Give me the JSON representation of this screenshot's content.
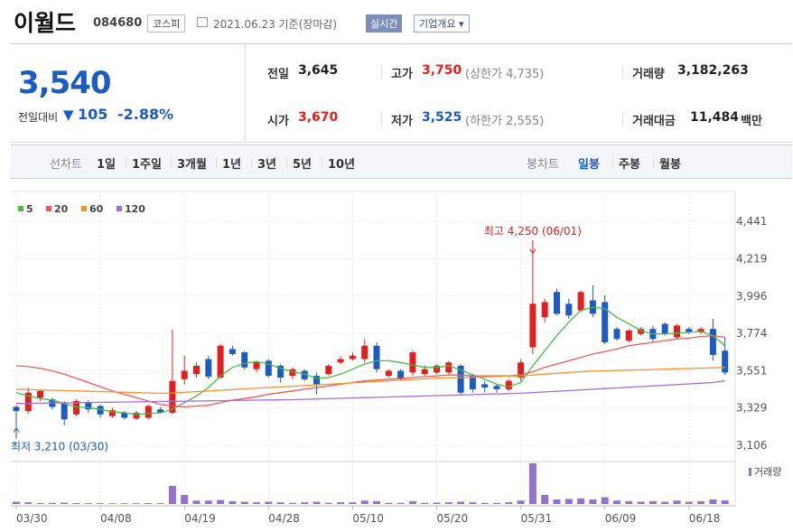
{
  "header": {
    "name": "이월드",
    "code": "084680",
    "market": "코스피",
    "date": "2021.06.23 기준(장마감)",
    "realtime": "실시간",
    "overview": "기업개요"
  },
  "quote": {
    "price": "3,540",
    "change_label": "전일대비",
    "change": "105",
    "change_pct": "-2.88%",
    "rows": [
      [
        {
          "label": "전일",
          "value": "3,645"
        },
        {
          "label": "고가",
          "value": "3,750",
          "note": "(상한가 4,735)"
        },
        {
          "label": "거래량",
          "value": "3,182,263"
        }
      ],
      [
        {
          "label": "시가",
          "value": "3,670"
        },
        {
          "label": "저가",
          "value": "3,525",
          "note": "(하한가 2,555)"
        },
        {
          "label": "거래대금",
          "value": "11,484",
          "unit": "백만"
        }
      ]
    ]
  },
  "tabs": {
    "line_label": "선차트",
    "line_items": [
      "1일",
      "1주일",
      "3개월",
      "1년",
      "3년",
      "5년",
      "10년"
    ],
    "candle_label": "봉차트",
    "candle_items": [
      "일봉",
      "주봉",
      "월봉"
    ]
  },
  "chart_data": {
    "type": "candlestick",
    "categories": [
      "03/30",
      null,
      null,
      null,
      null,
      null,
      null,
      "04/08",
      null,
      null,
      null,
      null,
      null,
      null,
      "04/19",
      null,
      null,
      null,
      null,
      null,
      null,
      "04/28",
      null,
      null,
      null,
      null,
      null,
      null,
      "05/10",
      null,
      null,
      null,
      null,
      null,
      null,
      "05/20",
      null,
      null,
      null,
      null,
      null,
      null,
      "05/31",
      null,
      null,
      null,
      null,
      null,
      null,
      "06/09",
      null,
      null,
      null,
      null,
      null,
      null,
      "06/18",
      null,
      null,
      null
    ],
    "open": [
      3335,
      3310,
      3390,
      3380,
      3355,
      3290,
      3360,
      3340,
      3280,
      3300,
      3265,
      3270,
      3320,
      3300,
      3500,
      3530,
      3620,
      3510,
      3680,
      3660,
      3560,
      3610,
      3580,
      3520,
      3550,
      3520,
      3530,
      3600,
      3620,
      3620,
      3700,
      3520,
      3550,
      3540,
      3530,
      3540,
      3540,
      3580,
      3520,
      3470,
      3460,
      3440,
      3510,
      3690,
      3870,
      4020,
      3950,
      3910,
      3970,
      3960,
      3800,
      3730,
      3770,
      3800,
      3830,
      3750,
      3800,
      3780,
      3800,
      3670
    ],
    "high": [
      3345,
      3450,
      3440,
      3390,
      3370,
      3380,
      3375,
      3350,
      3330,
      3310,
      3310,
      3350,
      3335,
      3795,
      3640,
      3600,
      3640,
      3710,
      3700,
      3670,
      3610,
      3620,
      3590,
      3570,
      3560,
      3540,
      3590,
      3640,
      3660,
      3740,
      3720,
      3560,
      3560,
      3670,
      3580,
      3590,
      3610,
      3590,
      3530,
      3490,
      3470,
      3500,
      3620,
      4250,
      3980,
      4040,
      3980,
      4030,
      4060,
      4000,
      3810,
      3800,
      3810,
      3820,
      3840,
      3830,
      3810,
      3810,
      3860,
      3750
    ],
    "low": [
      3210,
      3295,
      3370,
      3320,
      3225,
      3280,
      3300,
      3270,
      3270,
      3260,
      3255,
      3260,
      3295,
      3290,
      3470,
      3510,
      3500,
      3500,
      3640,
      3560,
      3540,
      3510,
      3480,
      3500,
      3490,
      3410,
      3520,
      3590,
      3610,
      3600,
      3540,
      3510,
      3490,
      3520,
      3520,
      3530,
      3530,
      3410,
      3420,
      3420,
      3420,
      3430,
      3490,
      3650,
      3840,
      3880,
      3860,
      3900,
      3870,
      3710,
      3730,
      3720,
      3760,
      3720,
      3760,
      3740,
      3770,
      3770,
      3610,
      3525
    ],
    "close": [
      3310,
      3420,
      3430,
      3335,
      3260,
      3370,
      3320,
      3290,
      3315,
      3270,
      3300,
      3340,
      3300,
      3490,
      3550,
      3580,
      3515,
      3700,
      3650,
      3570,
      3600,
      3520,
      3510,
      3560,
      3500,
      3470,
      3580,
      3620,
      3640,
      3700,
      3560,
      3550,
      3500,
      3660,
      3560,
      3580,
      3600,
      3420,
      3440,
      3450,
      3440,
      3490,
      3600,
      3950,
      3960,
      3890,
      3880,
      4020,
      3890,
      3720,
      3740,
      3790,
      3800,
      3740,
      3770,
      3820,
      3780,
      3800,
      3645,
      3540
    ],
    "up_color": "#e0201f",
    "down_color": "#1c5bbf",
    "series": [
      {
        "name": "5",
        "color": "#4cb848",
        "values": [
          3420,
          3400,
          3385,
          3375,
          3355,
          3335,
          3330,
          3320,
          3305,
          3300,
          3290,
          3295,
          3300,
          3320,
          3360,
          3400,
          3450,
          3520,
          3570,
          3595,
          3605,
          3590,
          3565,
          3545,
          3530,
          3505,
          3510,
          3530,
          3560,
          3590,
          3610,
          3610,
          3600,
          3585,
          3570,
          3570,
          3580,
          3555,
          3525,
          3500,
          3470,
          3455,
          3480,
          3580,
          3670,
          3760,
          3840,
          3910,
          3930,
          3920,
          3870,
          3830,
          3790,
          3770,
          3770,
          3775,
          3780,
          3785,
          3760,
          3700
        ]
      },
      {
        "name": "20",
        "color": "#ec5a5a",
        "values": [
          3580,
          3575,
          3565,
          3550,
          3530,
          3505,
          3480,
          3455,
          3430,
          3410,
          3390,
          3370,
          3350,
          3340,
          3335,
          3340,
          3345,
          3360,
          3375,
          3385,
          3395,
          3410,
          3420,
          3430,
          3440,
          3450,
          3460,
          3470,
          3480,
          3490,
          3495,
          3500,
          3505,
          3510,
          3515,
          3520,
          3525,
          3525,
          3520,
          3520,
          3520,
          3520,
          3525,
          3545,
          3570,
          3590,
          3610,
          3630,
          3650,
          3665,
          3680,
          3700,
          3710,
          3720,
          3730,
          3740,
          3745,
          3755,
          3760,
          3750
        ]
      },
      {
        "name": "60",
        "color": "#f39233",
        "values": [
          3440,
          3438,
          3436,
          3434,
          3432,
          3430,
          3428,
          3426,
          3424,
          3422,
          3420,
          3418,
          3416,
          3418,
          3422,
          3426,
          3430,
          3434,
          3438,
          3442,
          3446,
          3450,
          3454,
          3458,
          3462,
          3466,
          3470,
          3474,
          3478,
          3482,
          3486,
          3490,
          3494,
          3498,
          3502,
          3506,
          3508,
          3510,
          3512,
          3514,
          3516,
          3518,
          3520,
          3525,
          3530,
          3535,
          3540,
          3545,
          3548,
          3550,
          3552,
          3554,
          3556,
          3558,
          3560,
          3562,
          3564,
          3566,
          3568,
          3570
        ]
      },
      {
        "name": "120",
        "color": "#a070d6",
        "values": [
          3355,
          3356,
          3357,
          3358,
          3359,
          3360,
          3361,
          3362,
          3363,
          3364,
          3365,
          3366,
          3367,
          3368,
          3369,
          3370,
          3371,
          3372,
          3373,
          3374,
          3375,
          3376,
          3377,
          3378,
          3380,
          3382,
          3384,
          3386,
          3388,
          3390,
          3392,
          3394,
          3396,
          3398,
          3400,
          3402,
          3404,
          3406,
          3408,
          3410,
          3412,
          3414,
          3416,
          3420,
          3424,
          3428,
          3432,
          3436,
          3440,
          3444,
          3448,
          3452,
          3456,
          3460,
          3464,
          3468,
          3472,
          3476,
          3480,
          3490
        ]
      }
    ],
    "volume": {
      "name": "거래량",
      "color": "#9273c9",
      "values": [
        2000000,
        1500000,
        800000,
        1000000,
        1200000,
        800000,
        700000,
        700000,
        600000,
        600000,
        600000,
        800000,
        700000,
        16000000,
        8000000,
        3000000,
        3000000,
        3500000,
        2500000,
        2000000,
        1500000,
        2000000,
        1500000,
        1000000,
        1500000,
        2000000,
        1000000,
        1500000,
        1500000,
        3000000,
        2500000,
        1000000,
        1000000,
        2500000,
        1000000,
        1200000,
        1500000,
        2000000,
        1500000,
        1000000,
        1000000,
        1500000,
        3000000,
        36000000,
        8000000,
        4000000,
        4500000,
        5000000,
        4000000,
        6000000,
        3000000,
        2500000,
        2000000,
        2500000,
        2000000,
        3000000,
        2000000,
        2500000,
        4000000,
        3182263
      ]
    },
    "ylim": [
      3025,
      4485
    ],
    "yticks": [
      {
        "value": 3106,
        "label": "3,106"
      },
      {
        "value": 3329,
        "label": "3,329"
      },
      {
        "value": 3551,
        "label": "3,551"
      },
      {
        "value": 3774,
        "label": "3,774"
      },
      {
        "value": 3996,
        "label": "3,996"
      },
      {
        "value": 4219,
        "label": "4,219"
      },
      {
        "value": 4441,
        "label": "4,441"
      }
    ],
    "grid": true,
    "annotations": {
      "high": "최고 4,250 (06/01)",
      "low": "최저 3,210 (03/30)"
    }
  }
}
